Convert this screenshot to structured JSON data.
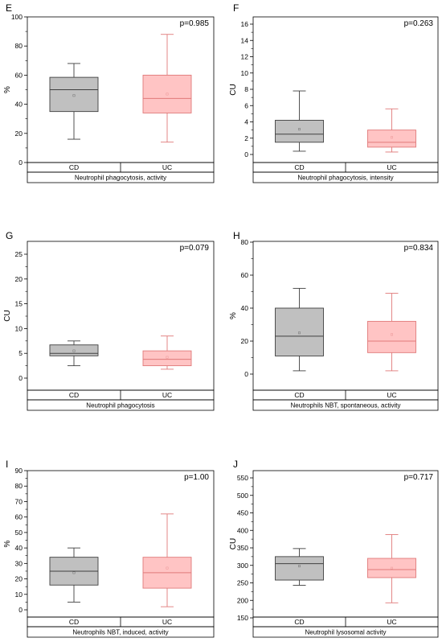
{
  "colors": {
    "cd_fill": "#c0c0c0",
    "cd_stroke": "#404040",
    "uc_fill": "#ffc4c4",
    "uc_stroke": "#e07a7a"
  },
  "chart_data": [
    {
      "type": "box",
      "letter": "E",
      "pvalue": "p=0.985",
      "ylabel": "%",
      "ylim": [
        0,
        100
      ],
      "yticks": [
        0,
        20,
        40,
        60,
        80,
        100
      ],
      "categories": [
        "CD",
        "UC"
      ],
      "group_label": "Neutrophil phagocytosis, activity",
      "boxes": [
        {
          "name": "CD",
          "min": 16,
          "q1": 35,
          "median": 50,
          "q3": 58.5,
          "max": 68,
          "mean": 46
        },
        {
          "name": "UC",
          "min": 14,
          "q1": 34,
          "median": 44,
          "q3": 60,
          "max": 88,
          "mean": 47
        }
      ]
    },
    {
      "type": "box",
      "letter": "F",
      "pvalue": "p=0.263",
      "ylabel": "CU",
      "ylim": [
        0,
        17
      ],
      "yticks": [
        0,
        2,
        4,
        6,
        8,
        10,
        12,
        14,
        16
      ],
      "categories": [
        "CD",
        "UC"
      ],
      "group_label": "Neutrophil phagocytosis, intensity",
      "boxes": [
        {
          "name": "CD",
          "min": 0.4,
          "q1": 1.5,
          "median": 2.5,
          "q3": 4.2,
          "max": 7.8,
          "mean": 3.1
        },
        {
          "name": "UC",
          "min": 0.3,
          "q1": 0.9,
          "median": 1.5,
          "q3": 3.0,
          "max": 5.6,
          "mean": 2.1
        }
      ]
    },
    {
      "type": "box",
      "letter": "G",
      "pvalue": "p=0.079",
      "ylabel": "CU",
      "ylim": [
        0,
        26
      ],
      "yticks": [
        0,
        5,
        10,
        15,
        20,
        25
      ],
      "categories": [
        "CD",
        "UC"
      ],
      "group_label": "Neutrophil phagocytosis",
      "boxes": [
        {
          "name": "CD",
          "min": 2.5,
          "q1": 4.5,
          "median": 5.0,
          "q3": 6.7,
          "max": 7.5,
          "mean": 5.5
        },
        {
          "name": "UC",
          "min": 1.8,
          "q1": 2.5,
          "median": 3.8,
          "q3": 5.5,
          "max": 8.5,
          "mean": 4.2
        }
      ]
    },
    {
      "type": "box",
      "letter": "H",
      "pvalue": "p=0.834",
      "ylabel": "%",
      "ylim": [
        0,
        80
      ],
      "yticks": [
        0,
        20,
        40,
        60,
        80
      ],
      "categories": [
        "CD",
        "UC"
      ],
      "group_label": "Neutrophils NBT, spontaneous, activity",
      "boxes": [
        {
          "name": "CD",
          "min": 2,
          "q1": 11,
          "median": 23,
          "q3": 40,
          "max": 52,
          "mean": 25
        },
        {
          "name": "UC",
          "min": 2,
          "q1": 13,
          "median": 20,
          "q3": 32,
          "max": 49,
          "mean": 24
        }
      ]
    },
    {
      "type": "box",
      "letter": "I",
      "pvalue": "p=1.00",
      "ylabel": "%",
      "ylim": [
        0,
        90
      ],
      "yticks": [
        0,
        10,
        20,
        30,
        40,
        50,
        60,
        70,
        80,
        90
      ],
      "categories": [
        "CD",
        "UC"
      ],
      "group_label": "Neutrophils NBT, induced, activity",
      "boxes": [
        {
          "name": "CD",
          "min": 5,
          "q1": 16,
          "median": 25,
          "q3": 34,
          "max": 40,
          "mean": 24
        },
        {
          "name": "UC",
          "min": 2,
          "q1": 14,
          "median": 24,
          "q3": 34,
          "max": 62,
          "mean": 27
        }
      ]
    },
    {
      "type": "box",
      "letter": "J",
      "pvalue": "p=0.717",
      "ylabel": "CU",
      "ylim": [
        150,
        560
      ],
      "yticks": [
        150,
        200,
        250,
        300,
        350,
        400,
        450,
        500,
        550
      ],
      "categories": [
        "CD",
        "UC"
      ],
      "group_label": "Neutrophil lysosomal activity",
      "boxes": [
        {
          "name": "CD",
          "min": 243,
          "q1": 258,
          "median": 305,
          "q3": 325,
          "max": 348,
          "mean": 298
        },
        {
          "name": "UC",
          "min": 193,
          "q1": 265,
          "median": 288,
          "q3": 320,
          "max": 388,
          "mean": 292
        }
      ]
    }
  ]
}
